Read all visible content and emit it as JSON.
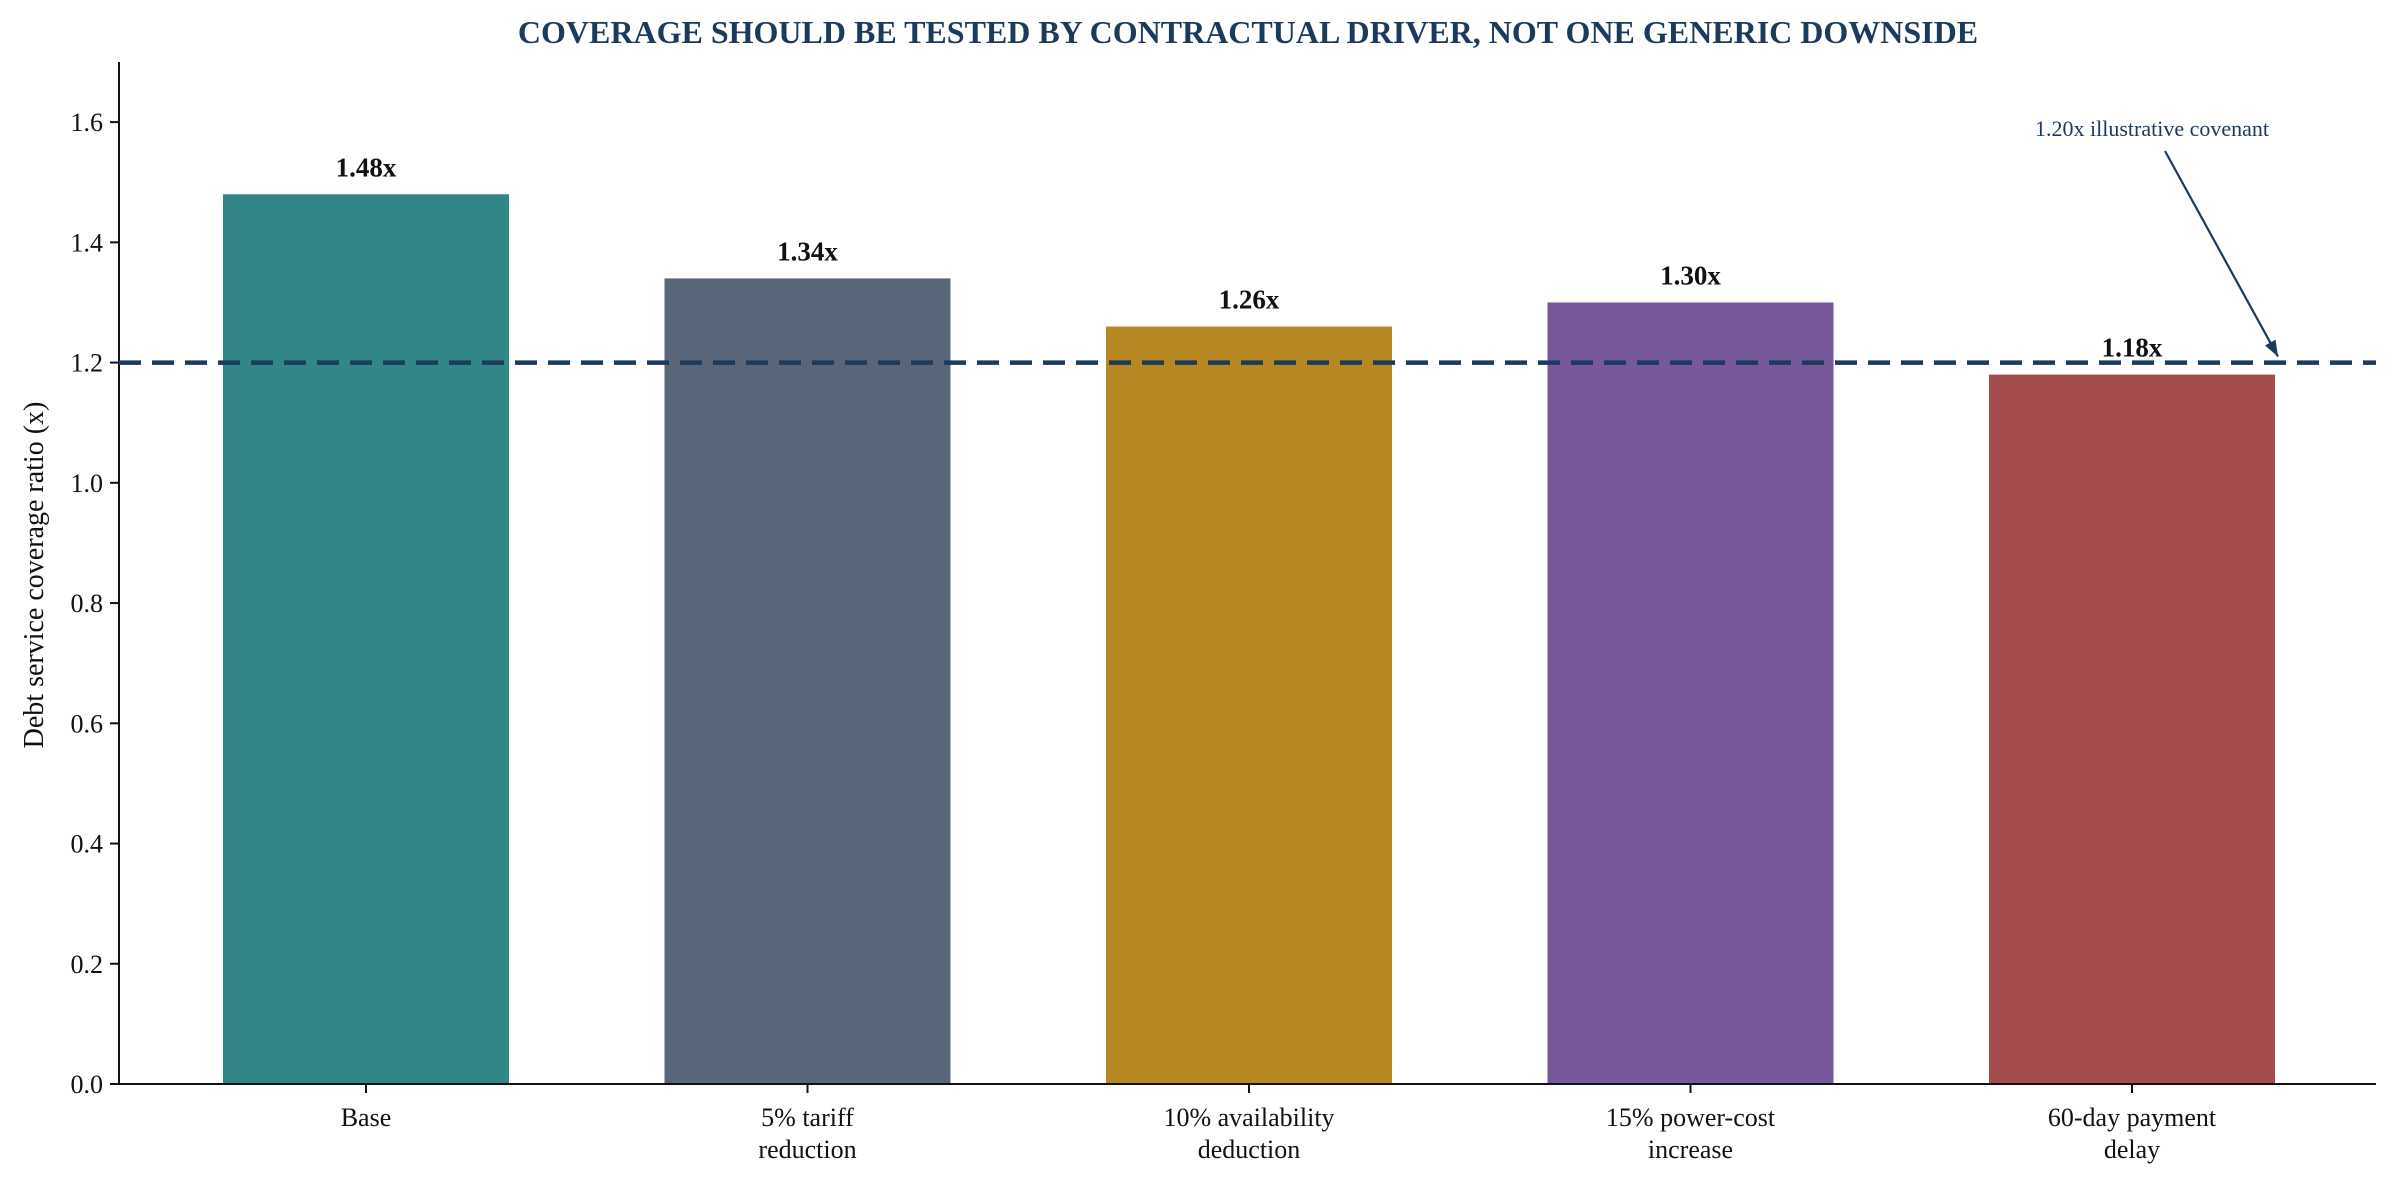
{
  "chart_data": {
    "type": "bar",
    "title": "COVERAGE SHOULD BE TESTED BY CONTRACTUAL DRIVER, NOT ONE GENERIC DOWNSIDE",
    "xlabel": "",
    "ylabel": "Debt service coverage ratio (x)",
    "categories": [
      [
        "Base"
      ],
      [
        "5% tariff",
        "reduction"
      ],
      [
        "10% availability",
        "deduction"
      ],
      [
        "15% power-cost",
        "increase"
      ],
      [
        "60-day payment",
        "delay"
      ]
    ],
    "values": [
      1.48,
      1.34,
      1.26,
      1.3,
      1.18
    ],
    "value_labels": [
      "1.48x",
      "1.34x",
      "1.26x",
      "1.30x",
      "1.18x"
    ],
    "bar_colors": [
      "#318786",
      "#596578",
      "#b78821",
      "#77589a",
      "#a34c4b"
    ],
    "ylim": [
      0.0,
      1.7
    ],
    "yticks": [
      0.0,
      0.2,
      0.4,
      0.6,
      0.8,
      1.0,
      1.2,
      1.4,
      1.6
    ],
    "ytick_labels": [
      "0.0",
      "0.2",
      "0.4",
      "0.6",
      "0.8",
      "1.0",
      "1.2",
      "1.4",
      "1.6"
    ],
    "reference_line": {
      "value": 1.2,
      "style": "dashed",
      "color": "#1b3a5c",
      "annotation": "1.20x illustrative covenant"
    },
    "grid": false,
    "legend": "none"
  }
}
